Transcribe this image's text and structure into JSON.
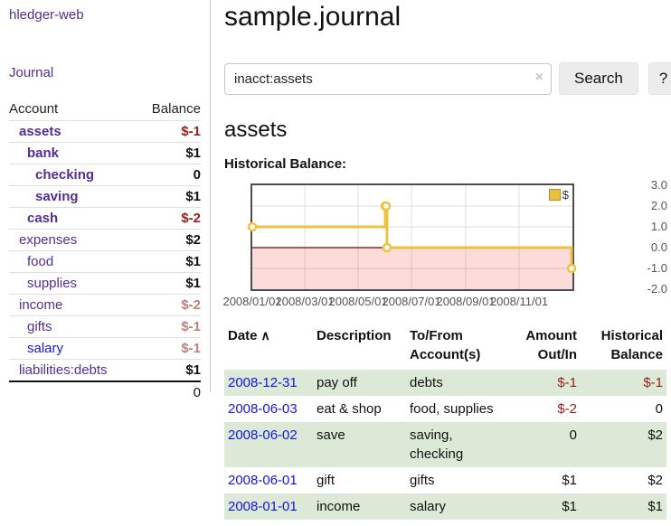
{
  "app": {
    "brand": "hledger-web",
    "nav_journal": "Journal"
  },
  "sidebar": {
    "table_headers": {
      "account": "Account",
      "balance": "Balance"
    },
    "accounts": [
      {
        "name": "assets",
        "depth": 1,
        "bold": true,
        "balance": "$-1",
        "balance_style": "neg-strong"
      },
      {
        "name": "bank",
        "depth": 2,
        "bold": true,
        "balance": "$1",
        "balance_style": "pos"
      },
      {
        "name": "checking",
        "depth": 3,
        "bold": true,
        "balance": "0",
        "balance_style": "pos"
      },
      {
        "name": "saving",
        "depth": 3,
        "bold": true,
        "balance": "$1",
        "balance_style": "pos"
      },
      {
        "name": "cash",
        "depth": 2,
        "bold": true,
        "balance": "$-2",
        "balance_style": "neg-strong"
      },
      {
        "name": "expenses",
        "depth": 1,
        "bold": false,
        "balance": "$2",
        "balance_style": "pos"
      },
      {
        "name": "food",
        "depth": 2,
        "bold": false,
        "balance": "$1",
        "balance_style": "pos"
      },
      {
        "name": "supplies",
        "depth": 2,
        "bold": false,
        "balance": "$1",
        "balance_style": "pos"
      },
      {
        "name": "income",
        "depth": 1,
        "bold": false,
        "balance": "$-2",
        "balance_style": "neg-faded"
      },
      {
        "name": "gifts",
        "depth": 2,
        "bold": false,
        "balance": "$-1",
        "balance_style": "neg-faded"
      },
      {
        "name": "salary",
        "depth": 2,
        "bold": false,
        "link_color": "blue",
        "balance": "$-1",
        "balance_style": "neg-faded"
      },
      {
        "name": "liabilities:debts",
        "depth": 1,
        "bold": false,
        "balance": "$1",
        "balance_style": "pos"
      }
    ],
    "total": "0"
  },
  "header": {
    "title": "sample.journal"
  },
  "search": {
    "query": "inacct:assets",
    "clear_icon": "×",
    "search_label": "Search",
    "help_label": "?"
  },
  "account_page": {
    "heading": "assets",
    "chart_label": "Historical Balance:"
  },
  "chart_data": {
    "type": "line",
    "step": true,
    "title": "Historical Balance",
    "series": [
      {
        "name": "$",
        "color": "#edc240",
        "points": [
          [
            "2008-01-01",
            1
          ],
          [
            "2008-06-01",
            2
          ],
          [
            "2008-06-02",
            2
          ],
          [
            "2008-06-03",
            0
          ],
          [
            "2008-12-31",
            -1
          ]
        ]
      }
    ],
    "x_range": [
      "2008-01-01",
      "2009-01-01"
    ],
    "x_ticks": [
      "2008/01/01",
      "2008/03/01",
      "2008/05/01",
      "2008/07/01",
      "2008/09/01",
      "2008/11/01"
    ],
    "y_ticks": [
      "3.0",
      "2.0",
      "1.0",
      "0.0",
      "-1.0",
      "-2.0"
    ],
    "ylim": [
      -2,
      3
    ],
    "grid": true,
    "negative_region_color": "#fcdbdb",
    "zero_line_color": "#800000",
    "legend": {
      "position": "top-right",
      "label": "$"
    }
  },
  "register": {
    "headers": {
      "date": "Date",
      "sort_icon": "∧",
      "description": "Description",
      "tofrom_line1": "To/From",
      "tofrom_line2": "Account(s)",
      "amount_line1": "Amount",
      "amount_line2": "Out/In",
      "balance_line1": "Historical",
      "balance_line2": "Balance"
    },
    "rows": [
      {
        "date": "2008-12-31",
        "description": "pay off",
        "accounts": [
          "debts"
        ],
        "amount": "$-1",
        "amount_neg": true,
        "balance": "$-1",
        "balance_neg": true
      },
      {
        "date": "2008-06-03",
        "description": "eat & shop",
        "accounts": [
          "food, supplies"
        ],
        "amount": "$-2",
        "amount_neg": true,
        "balance": "0",
        "balance_neg": false
      },
      {
        "date": "2008-06-02",
        "description": "save",
        "accounts": [
          "saving,",
          "checking"
        ],
        "amount": "0",
        "amount_neg": false,
        "balance": "$2",
        "balance_neg": false
      },
      {
        "date": "2008-06-01",
        "description": "gift",
        "accounts": [
          "gifts"
        ],
        "amount": "$1",
        "amount_neg": false,
        "balance": "$2",
        "balance_neg": false
      },
      {
        "date": "2008-01-01",
        "description": "income",
        "accounts": [
          "salary"
        ],
        "amount": "$1",
        "amount_neg": false,
        "balance": "$1",
        "balance_neg": false
      }
    ]
  }
}
